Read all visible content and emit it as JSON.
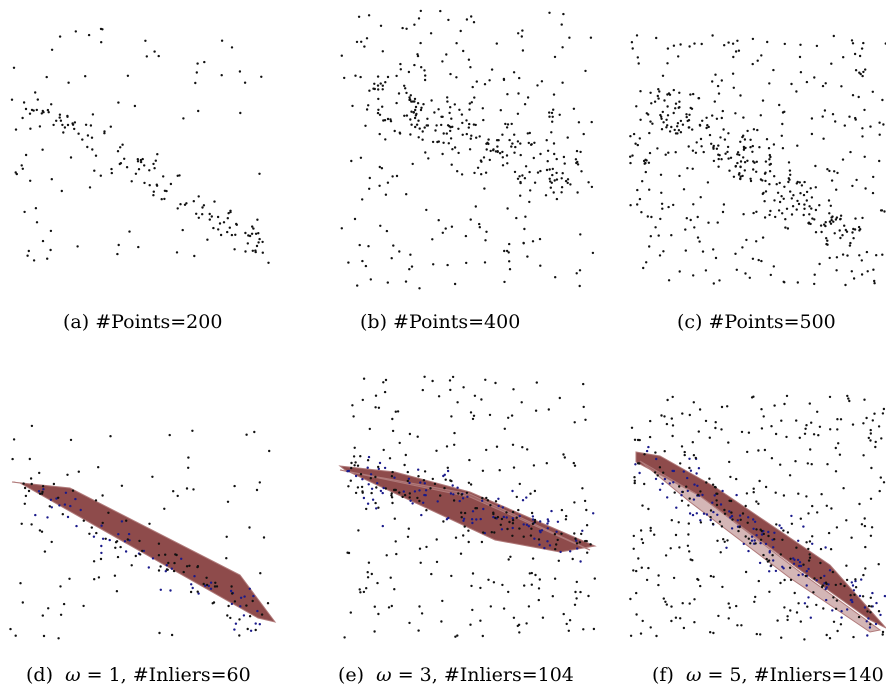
{
  "figure": {
    "panels": [
      {
        "id": "a",
        "caption_pre": "(a)  #Points=200",
        "caption_math": "",
        "caption_post": "",
        "n_points": 200,
        "omega": null,
        "inliers": null
      },
      {
        "id": "b",
        "caption_pre": "(b)  #Points=400",
        "caption_math": "",
        "caption_post": "",
        "n_points": 400,
        "omega": null,
        "inliers": null
      },
      {
        "id": "c",
        "caption_pre": "(c)  #Points=500",
        "caption_math": "",
        "caption_post": "",
        "n_points": 500,
        "omega": null,
        "inliers": null
      },
      {
        "id": "d",
        "caption_pre": "(d)  ",
        "caption_math": "ω",
        "caption_post": " = 1, #Inliers=60",
        "n_points": 200,
        "omega": 1,
        "inliers": 60
      },
      {
        "id": "e",
        "caption_pre": "(e)  ",
        "caption_math": "ω",
        "caption_post": " = 3, #Inliers=104",
        "n_points": 400,
        "omega": 3,
        "inliers": 104
      },
      {
        "id": "f",
        "caption_pre": "(f)  ",
        "caption_math": "ω",
        "caption_post": " = 5, #Inliers=140",
        "n_points": 500,
        "omega": 5,
        "inliers": 140
      }
    ],
    "colors": {
      "points": "#111111",
      "inlier_points": "#1a1a8a",
      "band_fill": "#7a2c2c",
      "band_fill_light": "#b07a7a"
    }
  }
}
